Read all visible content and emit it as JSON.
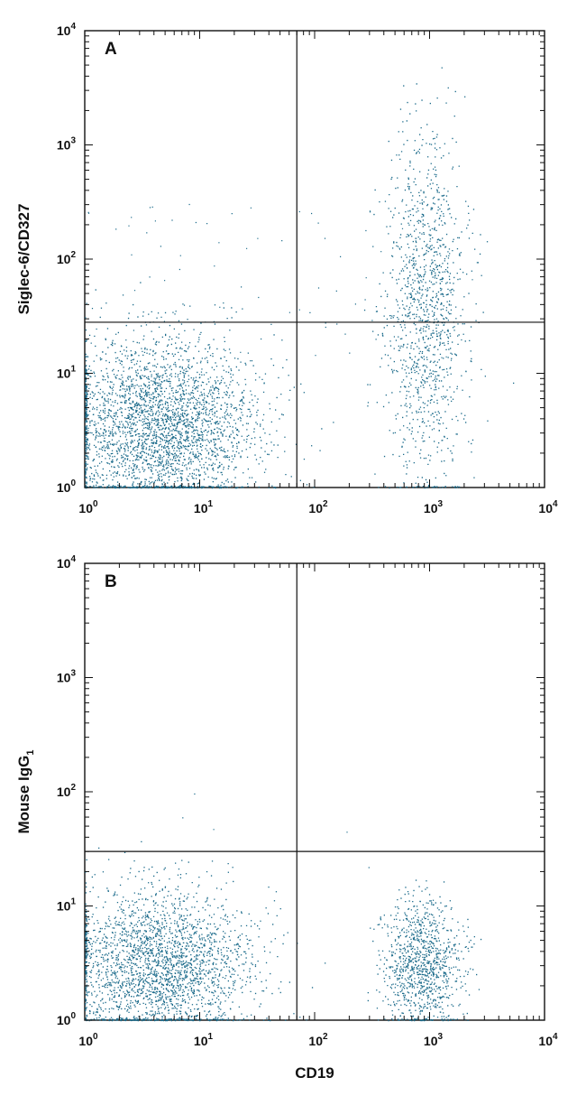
{
  "colors": {
    "dots": "#1a6a8a",
    "axis": "#111111"
  },
  "x_tick_labels": [
    {
      "base": "10",
      "exp": "0"
    },
    {
      "base": "10",
      "exp": "1"
    },
    {
      "base": "10",
      "exp": "2"
    },
    {
      "base": "10",
      "exp": "3"
    },
    {
      "base": "10",
      "exp": "4"
    }
  ],
  "y_tick_labels": [
    {
      "base": "10",
      "exp": "0"
    },
    {
      "base": "10",
      "exp": "1"
    },
    {
      "base": "10",
      "exp": "2"
    },
    {
      "base": "10",
      "exp": "3"
    },
    {
      "base": "10",
      "exp": "4"
    }
  ],
  "chart_data": [
    {
      "type": "scatter",
      "panel": "A",
      "xlabel": "CD19",
      "ylabel": "Siglec-6/CD327",
      "ylabel_subscript": "",
      "x_scale": "log",
      "y_scale": "log",
      "xlim": [
        1,
        10000
      ],
      "ylim": [
        1,
        10000
      ],
      "quadrant_gate": {
        "x": 70,
        "y": 28
      },
      "populations": [
        {
          "center_x": 4.5,
          "center_y": 3.5,
          "spread_x_log": 0.42,
          "spread_y_log": 0.38,
          "count": 9500
        },
        {
          "center_x": 900,
          "center_y": 40,
          "spread_x_log": 0.18,
          "spread_y_log": 0.75,
          "count": 1250
        }
      ]
    },
    {
      "type": "scatter",
      "panel": "B",
      "xlabel": "CD19",
      "ylabel": "Mouse IgG",
      "ylabel_subscript": "1",
      "x_scale": "log",
      "y_scale": "log",
      "xlim": [
        1,
        10000
      ],
      "ylim": [
        1,
        10000
      ],
      "quadrant_gate": {
        "x": 70,
        "y": 30
      },
      "populations": [
        {
          "center_x": 4.5,
          "center_y": 3.0,
          "spread_x_log": 0.4,
          "spread_y_log": 0.33,
          "count": 9000
        },
        {
          "center_x": 850,
          "center_y": 3.2,
          "spread_x_log": 0.17,
          "spread_y_log": 0.28,
          "count": 1050
        }
      ]
    }
  ]
}
